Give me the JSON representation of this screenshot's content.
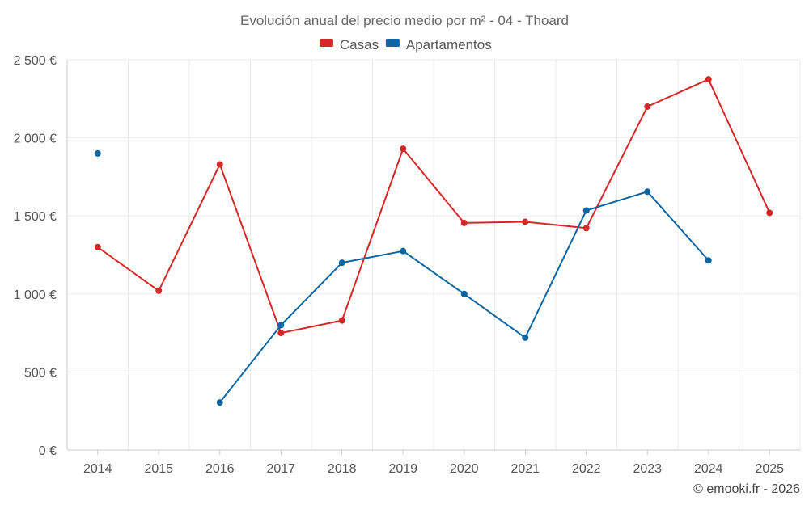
{
  "chart_data": {
    "type": "line",
    "title": "Evolución anual del precio medio por m² - 04 - Thoard",
    "categories": [
      "2014",
      "2015",
      "2016",
      "2017",
      "2018",
      "2019",
      "2020",
      "2021",
      "2022",
      "2023",
      "2024",
      "2025"
    ],
    "series": [
      {
        "name": "Casas",
        "color": "#d62728",
        "values": [
          1300,
          1020,
          1830,
          750,
          830,
          1930,
          1455,
          1462,
          1422,
          2200,
          2375,
          1520
        ]
      },
      {
        "name": "Apartamentos",
        "color": "#0a66a0",
        "values": [
          1900,
          null,
          305,
          800,
          1200,
          1275,
          1000,
          720,
          1535,
          1655,
          1215,
          null
        ]
      }
    ],
    "ylim": [
      0,
      2500
    ],
    "yticks": [
      0,
      500,
      1000,
      1500,
      2000,
      2500
    ],
    "ytick_labels": [
      "0 €",
      "500 €",
      "1 000 €",
      "1 500 €",
      "2 000 €",
      "2 500 €"
    ],
    "xlabel": "",
    "ylabel": "",
    "grid": true,
    "legend_position": "top-center"
  },
  "credit": "© emooki.fr - 2026"
}
